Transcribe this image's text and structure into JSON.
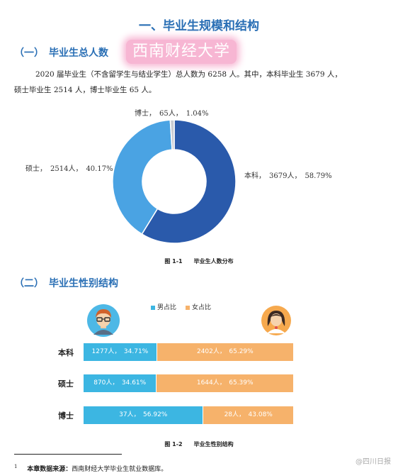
{
  "title": "一、毕业生规模和结构",
  "section1": {
    "heading": "（一）　毕业生总人数"
  },
  "watermark": "西南财经大学",
  "paragraph": {
    "line1": "2020 届毕业生（不含留学生与结业学生）总人数为 6258 人。其中，本科毕业生 3679 人，",
    "line2": "硕士毕业生 2514 人，博士毕业生 65 人。"
  },
  "chart_data": [
    {
      "type": "pie",
      "title": "图 1-1　　毕业生人数分布",
      "slices": [
        {
          "name": "本科",
          "value": 3679,
          "percent": 58.79,
          "color": "#2a5aab",
          "label": "本科，　3679人，　58.79%"
        },
        {
          "name": "硕士",
          "value": 2514,
          "percent": 40.17,
          "color": "#4aa3e3",
          "label": "硕士，　2514人，　40.17%"
        },
        {
          "name": "博士",
          "value": 65,
          "percent": 1.04,
          "color": "#c9ccd2",
          "label": "博士，　65人，　1.04%"
        }
      ]
    },
    {
      "type": "bar",
      "stacked": true,
      "orientation": "horizontal",
      "title": "图 1-2　　毕业生性别结构",
      "categories": [
        "本科",
        "硕士",
        "博士"
      ],
      "series": [
        {
          "name": "男占比",
          "color": "#3cb6e2",
          "values": [
            34.71,
            34.61,
            56.92
          ],
          "counts": [
            1277,
            870,
            37
          ],
          "labels": [
            "1277人，　34.71%",
            "870人，　34.61%",
            "37人，　56.92%"
          ]
        },
        {
          "name": "女占比",
          "color": "#f6b26b",
          "values": [
            65.29,
            65.39,
            43.08
          ],
          "counts": [
            2402,
            1644,
            28
          ],
          "labels": [
            "2402人，　65.29%",
            "1644人，　65.39%",
            "28人，　43.08%"
          ]
        }
      ]
    }
  ],
  "section2": {
    "heading": "（二）　毕业生性别结构"
  },
  "footnote": {
    "marker": "1",
    "bold": "本章数据来源：",
    "text": "西南财经大学毕业生就业数据库。"
  },
  "weibo": "@四川日报"
}
